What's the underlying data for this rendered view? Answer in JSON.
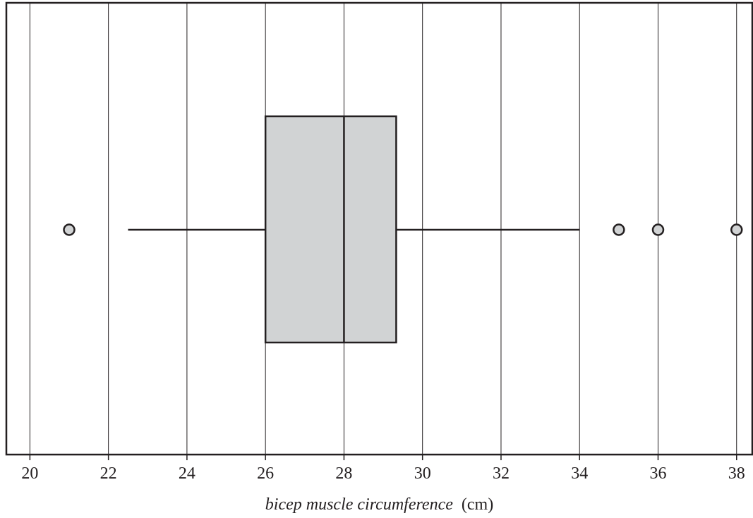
{
  "chart_data": {
    "type": "boxplot",
    "orientation": "horizontal",
    "xlabel_italic": "bicep muscle circumference",
    "xlabel_unit": "(cm)",
    "xlim": [
      19.4,
      38.4
    ],
    "ticks": [
      20,
      22,
      24,
      26,
      28,
      30,
      32,
      34,
      36,
      38
    ],
    "tick_labels": [
      "20",
      "22",
      "24",
      "26",
      "28",
      "30",
      "32",
      "34",
      "36",
      "38"
    ],
    "grid": "vertical",
    "box": {
      "whisker_low": 22.5,
      "q1": 26,
      "median": 28,
      "q3": 29.33,
      "whisker_high": 34
    },
    "outliers": [
      21,
      35,
      36,
      38
    ],
    "colors": {
      "box_fill": "#d1d3d4",
      "line": "#231f20",
      "grid": "#231f20",
      "outlier_fill": "#d1d3d4"
    }
  }
}
